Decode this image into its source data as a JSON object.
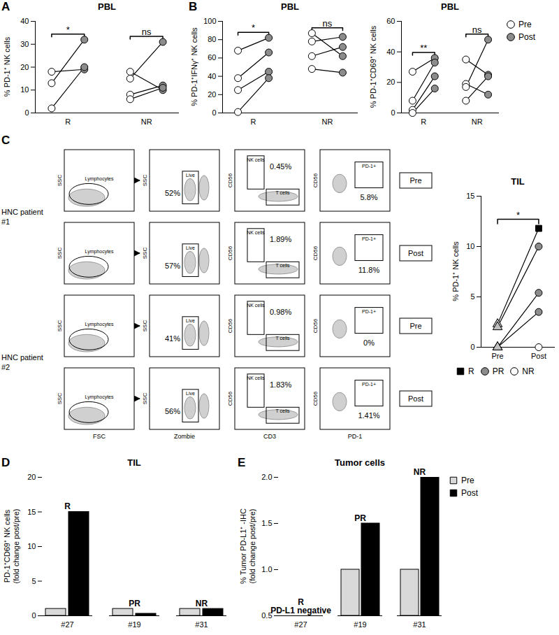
{
  "chart_data": [
    {
      "type": "paired",
      "panel": "A",
      "title": "PBL",
      "y_label": [
        "% PD-1⁺ NK cells"
      ],
      "ylim": [
        0,
        40
      ],
      "yticks": [
        0,
        10,
        20,
        30,
        40
      ],
      "categories": [
        "R",
        "NR"
      ],
      "series": [
        {
          "name": "Pre",
          "color": "#ffffff",
          "values": [
            [
              18,
              13,
              2
            ],
            [
              18,
              15,
              8,
              6
            ]
          ]
        },
        {
          "name": "Post",
          "color": "#8c8c8c",
          "values": [
            [
              19,
              32,
              20
            ],
            [
              10,
              31,
              12,
              11
            ]
          ]
        }
      ],
      "significance": [
        "*",
        "ns"
      ]
    },
    {
      "type": "paired",
      "panel": "B",
      "title": "PBL",
      "y_label": [
        "% PD-1⁺IFNγ⁺ NK cells"
      ],
      "ylim": [
        0,
        100
      ],
      "yticks": [
        0,
        20,
        40,
        60,
        80,
        100
      ],
      "categories": [
        "R",
        "NR"
      ],
      "series": [
        {
          "name": "Pre",
          "color": "#ffffff",
          "values": [
            [
              68,
              38,
              25,
              1
            ],
            [
              87,
              78,
              62,
              48
            ]
          ]
        },
        {
          "name": "Post",
          "color": "#8c8c8c",
          "values": [
            [
              82,
              66,
              45,
              38
            ],
            [
              62,
              83,
              72,
              44
            ]
          ]
        }
      ],
      "significance": [
        "*",
        "ns"
      ]
    },
    {
      "type": "paired",
      "title": "PBL",
      "y_label": [
        "% PD-1⁺CD69⁺ NK cells"
      ],
      "ylim": [
        0,
        60
      ],
      "yticks": [
        0,
        20,
        40,
        60
      ],
      "categories": [
        "R",
        "NR"
      ],
      "series": [
        {
          "name": "Pre",
          "color": "#ffffff",
          "values": [
            [
              27,
              8,
              2,
              0
            ],
            [
              35,
              19,
              17,
              8
            ]
          ]
        },
        {
          "name": "Post",
          "color": "#8c8c8c",
          "values": [
            [
              36,
              33,
              24,
              16
            ],
            [
              25,
              12,
              48,
              24
            ]
          ]
        }
      ],
      "significance": [
        "**",
        "ns"
      ],
      "legend": "right"
    },
    {
      "type": "flow_cytometry",
      "panel": "C",
      "x_labels": [
        "FSC",
        "Zombie",
        "CD3",
        "PD-1"
      ],
      "y_labels": [
        "SSC",
        "SSC",
        "CD56",
        "CD56"
      ],
      "gate_labels": [
        "Lymphocytes",
        "Live",
        "NK cells",
        "T cells",
        "PD-1+"
      ],
      "patients": [
        {
          "name": "HNC patient #1",
          "samples": [
            {
              "timepoint": "Pre",
              "values": [
                "52%",
                "0.45%",
                "5.8%"
              ]
            },
            {
              "timepoint": "Post",
              "values": [
                "57%",
                "1.89%",
                "11.8%"
              ]
            }
          ]
        },
        {
          "name": "HNC patient #2",
          "samples": [
            {
              "timepoint": "Pre",
              "values": [
                "41%",
                "0.98%",
                "0%"
              ]
            },
            {
              "timepoint": "Post",
              "values": [
                "56%",
                "1.83%",
                "1.41%"
              ]
            }
          ]
        }
      ]
    },
    {
      "type": "paired_response",
      "title": "TIL",
      "y_label": [
        "% PD-1⁺ NK cells"
      ],
      "ylim": [
        0,
        15
      ],
      "yticks": [
        0,
        5,
        10,
        15
      ],
      "categories": [
        "Pre",
        "Post"
      ],
      "series": [
        {
          "name": "R",
          "color": "#000000",
          "marker": "square",
          "values": [
            [
              2.3,
              11.8
            ]
          ]
        },
        {
          "name": "PR",
          "color": "#8c8c8c",
          "marker": "circle",
          "values": [
            [
              2,
              10
            ],
            [
              0,
              5.4
            ],
            [
              0,
              3.5
            ]
          ]
        },
        {
          "name": "NR",
          "color": "#ffffff",
          "marker": "circle",
          "values": [
            [
              0,
              0
            ]
          ]
        }
      ],
      "significance": "*",
      "legend": "bottom"
    },
    {
      "type": "bar",
      "panel": "D",
      "title": "TIL",
      "y_label": [
        "PD-1⁺CD69⁺ NK cells",
        "(fold change post/pre)"
      ],
      "ylim": [
        0,
        20
      ],
      "yticks": [
        0,
        5,
        10,
        15,
        20
      ],
      "categories": [
        "#27",
        "#19",
        "#31"
      ],
      "series": [
        {
          "name": "Pre",
          "color": "#d9d9d9",
          "values": [
            1,
            1,
            1
          ]
        },
        {
          "name": "Post",
          "color": "#000000",
          "values": [
            15,
            0.3,
            1
          ]
        }
      ],
      "annotations": [
        [
          "R"
        ],
        [
          "PR"
        ],
        [
          "NR"
        ]
      ]
    },
    {
      "type": "bar",
      "panel": "E",
      "title": "Tumor cells",
      "y_label": [
        "% Tumor PD-L1⁺ -IHC",
        "(fold change post/pre)"
      ],
      "ylim": [
        0.5,
        2
      ],
      "yticks": [
        0.5,
        {
          "value": 1,
          "label": "1.0"
        },
        1.5,
        {
          "value": 2,
          "label": "2.0"
        }
      ],
      "categories": [
        "#27",
        "#19",
        "#31"
      ],
      "series": [
        {
          "name": "Pre",
          "color": "#d9d9d9",
          "values": [
            null,
            1,
            1
          ]
        },
        {
          "name": "Post",
          "color": "#000000",
          "values": [
            null,
            1.5,
            2
          ]
        }
      ],
      "annotations": [
        [
          "R",
          "PD-L1 negative"
        ],
        [
          "PR"
        ],
        [
          "NR"
        ]
      ],
      "legend": "right"
    }
  ]
}
